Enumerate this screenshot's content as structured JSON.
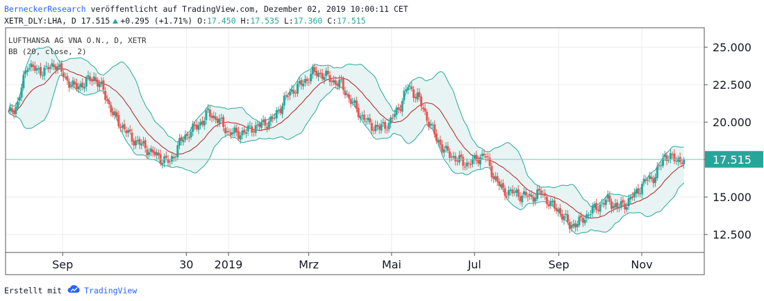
{
  "header": {
    "publisher": "BerneckerResearch",
    "published_text": " veröffentlicht auf TradingView.com, Dezember 02, 2019 10:00:11 CET",
    "symbol": "XETR_DLY:LHA, D",
    "last": "17.515",
    "change": "+0.295 (+1.71%)",
    "o_label": "O:",
    "o": "17.450",
    "h_label": "H:",
    "h": "17.535",
    "l_label": "L:",
    "l": "17.360",
    "c_label": "C:",
    "c": "17.515"
  },
  "legend": {
    "title": "LUFTHANSA AG VNA O.N., D, XETR",
    "indicator": "BB (20, close, 2)"
  },
  "footer": {
    "made_with": "Erstellt mit",
    "brand": "TradingView"
  },
  "colors": {
    "up": "#26a69a",
    "down": "#ef5350",
    "basis": "#b71c1c",
    "band": "#26a69a",
    "band_fill": "#e7f4f3",
    "grid": "#ececec",
    "axis": "#555555"
  },
  "chart_data": {
    "type": "candlestick",
    "title": "LUFTHANSA AG VNA O.N., D, XETR",
    "ylim": [
      11.3,
      26.3
    ],
    "y_ticks": [
      {
        "label": "25.000",
        "value": 25.0
      },
      {
        "label": "22.500",
        "value": 22.5
      },
      {
        "label": "20.000",
        "value": 20.0
      },
      {
        "label": "17.500",
        "value": 17.5
      },
      {
        "label": "15.000",
        "value": 15.0
      },
      {
        "label": "12.500",
        "value": 12.5
      }
    ],
    "x_ticks": [
      {
        "label": "Sep",
        "date": "2018-09-01"
      },
      {
        "label": "30",
        "date": "2018-12-01"
      },
      {
        "label": "2019",
        "date": "2019-01-01"
      },
      {
        "label": "Mrz",
        "date": "2019-03-01"
      },
      {
        "label": "Mai",
        "date": "2019-05-01"
      },
      {
        "label": "Jul",
        "date": "2019-07-01"
      },
      {
        "label": "Sep",
        "date": "2019-09-01"
      },
      {
        "label": "Nov",
        "date": "2019-11-01"
      }
    ],
    "last_price": {
      "label": "17.515",
      "value": 17.515
    },
    "indicator": {
      "name": "BB (20, close, 2)",
      "period": 20,
      "multiplier": 2
    },
    "series_close": [
      {
        "date": "2018-07-23",
        "close": 20.5
      },
      {
        "date": "2018-07-30",
        "close": 21.2
      },
      {
        "date": "2018-08-06",
        "close": 23.9
      },
      {
        "date": "2018-08-13",
        "close": 23.4
      },
      {
        "date": "2018-08-20",
        "close": 23.5
      },
      {
        "date": "2018-08-27",
        "close": 23.9
      },
      {
        "date": "2018-09-03",
        "close": 22.9
      },
      {
        "date": "2018-09-10",
        "close": 22.3
      },
      {
        "date": "2018-09-17",
        "close": 22.6
      },
      {
        "date": "2018-09-24",
        "close": 23.0
      },
      {
        "date": "2018-10-01",
        "close": 22.1
      },
      {
        "date": "2018-10-08",
        "close": 20.5
      },
      {
        "date": "2018-10-15",
        "close": 19.7
      },
      {
        "date": "2018-10-22",
        "close": 18.9
      },
      {
        "date": "2018-10-29",
        "close": 18.5
      },
      {
        "date": "2018-11-05",
        "close": 18.0
      },
      {
        "date": "2018-11-12",
        "close": 17.6
      },
      {
        "date": "2018-11-19",
        "close": 17.3
      },
      {
        "date": "2018-11-26",
        "close": 18.6
      },
      {
        "date": "2018-12-03",
        "close": 19.3
      },
      {
        "date": "2018-12-10",
        "close": 19.8
      },
      {
        "date": "2018-12-17",
        "close": 20.6
      },
      {
        "date": "2018-12-24",
        "close": 20.2
      },
      {
        "date": "2018-12-31",
        "close": 19.4
      },
      {
        "date": "2019-01-07",
        "close": 19.2
      },
      {
        "date": "2019-01-14",
        "close": 19.4
      },
      {
        "date": "2019-01-21",
        "close": 19.7
      },
      {
        "date": "2019-01-28",
        "close": 19.9
      },
      {
        "date": "2019-02-04",
        "close": 20.3
      },
      {
        "date": "2019-02-11",
        "close": 21.5
      },
      {
        "date": "2019-02-18",
        "close": 22.2
      },
      {
        "date": "2019-02-25",
        "close": 22.6
      },
      {
        "date": "2019-03-04",
        "close": 23.3
      },
      {
        "date": "2019-03-11",
        "close": 23.2
      },
      {
        "date": "2019-03-18",
        "close": 22.8
      },
      {
        "date": "2019-03-25",
        "close": 22.5
      },
      {
        "date": "2019-04-01",
        "close": 21.4
      },
      {
        "date": "2019-04-08",
        "close": 20.5
      },
      {
        "date": "2019-04-15",
        "close": 19.8
      },
      {
        "date": "2019-04-22",
        "close": 19.6
      },
      {
        "date": "2019-04-29",
        "close": 19.9
      },
      {
        "date": "2019-05-06",
        "close": 20.9
      },
      {
        "date": "2019-05-13",
        "close": 22.4
      },
      {
        "date": "2019-05-20",
        "close": 21.7
      },
      {
        "date": "2019-05-27",
        "close": 20.3
      },
      {
        "date": "2019-06-03",
        "close": 18.9
      },
      {
        "date": "2019-06-10",
        "close": 18.0
      },
      {
        "date": "2019-06-17",
        "close": 17.6
      },
      {
        "date": "2019-06-24",
        "close": 17.2
      },
      {
        "date": "2019-07-01",
        "close": 17.4
      },
      {
        "date": "2019-07-08",
        "close": 17.9
      },
      {
        "date": "2019-07-15",
        "close": 16.4
      },
      {
        "date": "2019-07-22",
        "close": 15.4
      },
      {
        "date": "2019-07-29",
        "close": 15.3
      },
      {
        "date": "2019-08-05",
        "close": 15.1
      },
      {
        "date": "2019-08-12",
        "close": 15.0
      },
      {
        "date": "2019-08-19",
        "close": 15.3
      },
      {
        "date": "2019-08-26",
        "close": 14.5
      },
      {
        "date": "2019-09-02",
        "close": 14.0
      },
      {
        "date": "2019-09-09",
        "close": 13.1
      },
      {
        "date": "2019-09-16",
        "close": 13.3
      },
      {
        "date": "2019-09-23",
        "close": 13.9
      },
      {
        "date": "2019-09-30",
        "close": 14.4
      },
      {
        "date": "2019-10-07",
        "close": 14.8
      },
      {
        "date": "2019-10-14",
        "close": 14.3
      },
      {
        "date": "2019-10-21",
        "close": 14.6
      },
      {
        "date": "2019-10-28",
        "close": 15.3
      },
      {
        "date": "2019-11-04",
        "close": 16.1
      },
      {
        "date": "2019-11-11",
        "close": 16.4
      },
      {
        "date": "2019-11-18",
        "close": 17.8
      },
      {
        "date": "2019-11-25",
        "close": 17.5
      },
      {
        "date": "2019-12-02",
        "close": 17.515
      }
    ]
  }
}
